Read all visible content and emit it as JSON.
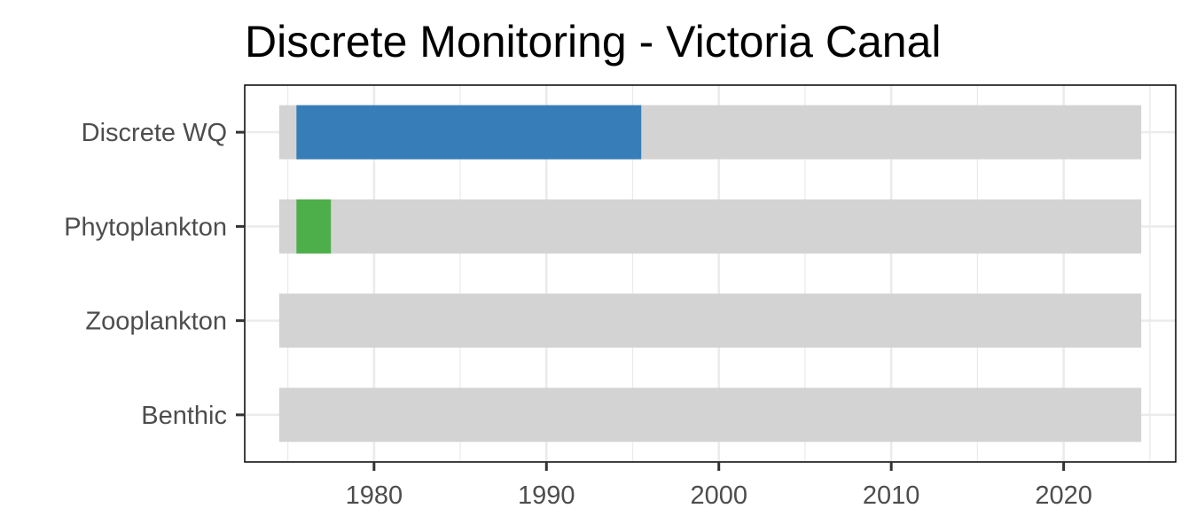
{
  "chart_data": {
    "type": "bar",
    "subtype": "horizontal-range",
    "title": "Discrete Monitoring - Victoria Canal",
    "xlabel": "",
    "ylabel": "",
    "xlim": [
      1972.5,
      1986.5
    ],
    "x_ticks": [
      1980,
      1990,
      2000,
      2010,
      2020
    ],
    "categories": [
      "Discrete WQ",
      "Phytoplankton",
      "Zooplankton",
      "Benthic"
    ],
    "background_range": [
      1974.5,
      2024.5
    ],
    "background_color": "#d3d3d3",
    "ranges": [
      {
        "category": "Discrete WQ",
        "start": 1975.5,
        "end": 1995.5,
        "color": "#377eb8"
      },
      {
        "category": "Phytoplankton",
        "start": 1975.5,
        "end": 1977.5,
        "color": "#4daf4a"
      }
    ],
    "grid": true,
    "legend": "none"
  }
}
